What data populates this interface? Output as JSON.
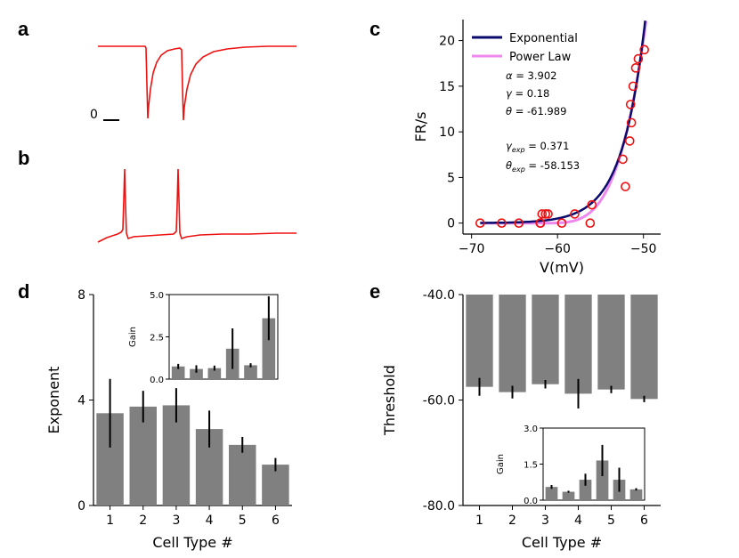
{
  "colors": {
    "trace": "#ee1111",
    "bar": "#808080",
    "err": "#000000",
    "exp_line": "#0b0b6e",
    "pow_line": "#ee88ee",
    "marker": "#ee1111"
  },
  "panels": {
    "a": {
      "label": "a",
      "scale_label": "0",
      "description": "voltage-clamp current trace with two inward transients"
    },
    "b": {
      "label": "b",
      "description": "current-clamp voltage trace with two spikes"
    },
    "c": {
      "label": "c"
    },
    "d": {
      "label": "d"
    },
    "e": {
      "label": "e"
    }
  },
  "chart_data": [
    {
      "id": "c",
      "type": "scatter",
      "xlabel": "V(mV)",
      "ylabel": "FR/s",
      "xlim": [
        -71,
        -48
      ],
      "ylim": [
        -1.2,
        22.3
      ],
      "xticks": [
        -70,
        -60,
        -50
      ],
      "xtick_labels": [
        "−70",
        "−60",
        "−50"
      ],
      "yticks": [
        0,
        5,
        10,
        15,
        20
      ],
      "ytick_labels": [
        "0",
        "5",
        "10",
        "15",
        "20"
      ],
      "legend": [
        "Exponential",
        "Power Law"
      ],
      "legend_position": "top-left",
      "points": {
        "x": [
          -69,
          -66.5,
          -64.5,
          -62,
          -61.8,
          -61.4,
          -62.0,
          -61.1,
          -59.5,
          -58.0,
          -56.2,
          -56.0,
          -52.4,
          -52.1,
          -51.6,
          -51.5,
          -51.4,
          -51.2,
          -50.9,
          -50.6,
          -49.9
        ],
        "y": [
          0,
          0,
          0,
          0,
          1,
          1,
          0,
          1,
          0,
          1,
          0,
          2,
          7,
          4,
          9,
          13,
          11,
          15,
          17,
          18,
          19
        ]
      },
      "series": [
        {
          "name": "Exponential",
          "model": "exponential",
          "gamma": 0.371,
          "theta": -58.153
        },
        {
          "name": "Power Law",
          "model": "power",
          "alpha": 3.902,
          "gamma": 0.18,
          "theta": -61.989
        }
      ],
      "params": {
        "alpha_sym": "α",
        "alpha": "= 3.902",
        "gamma_sym": "γ",
        "gamma": "= 0.18",
        "theta_sym": "θ",
        "theta": "= -61.989",
        "gamma_exp_sym": "γ",
        "exp_sub": "exp",
        "gamma_exp": "= 0.371",
        "theta_exp_sym": "θ",
        "theta_exp": "= -58.153"
      }
    },
    {
      "id": "d",
      "type": "bar",
      "xlabel": "Cell Type #",
      "ylabel": "Exponent",
      "categories": [
        "1",
        "2",
        "3",
        "4",
        "5",
        "6"
      ],
      "values": [
        3.5,
        3.75,
        3.8,
        2.9,
        2.3,
        1.55
      ],
      "errors": [
        1.3,
        0.6,
        0.65,
        0.7,
        0.3,
        0.25
      ],
      "ylim": [
        0,
        8
      ],
      "yticks": [
        0,
        4,
        8
      ],
      "ytick_labels": [
        "0",
        "4",
        "8"
      ],
      "inset": {
        "ylabel": "Gain",
        "values": [
          0.75,
          0.6,
          0.65,
          1.8,
          0.82,
          3.6
        ],
        "errors": [
          0.15,
          0.22,
          0.15,
          1.2,
          0.12,
          1.3
        ],
        "ylim": [
          0,
          5
        ],
        "yticks": [
          0,
          2.5,
          5
        ],
        "ytick_labels": [
          "0.0",
          "2.5",
          "5.0"
        ]
      }
    },
    {
      "id": "e",
      "type": "bar",
      "xlabel": "Cell Type #",
      "ylabel": "Threshold",
      "categories": [
        "1",
        "2",
        "3",
        "4",
        "5",
        "6"
      ],
      "values": [
        -57.5,
        -58.5,
        -57.0,
        -58.8,
        -58.0,
        -59.8
      ],
      "errors": [
        1.7,
        1.2,
        0.8,
        2.8,
        0.7,
        0.6
      ],
      "ylim": [
        -80,
        -40
      ],
      "yticks": [
        -40,
        -60,
        -80
      ],
      "ytick_labels": [
        "-40.0",
        "-60.0",
        "-80.0"
      ],
      "inset": {
        "ylabel": "Gain",
        "values": [
          0.55,
          0.35,
          0.85,
          1.65,
          0.85,
          0.45
        ],
        "errors": [
          0.08,
          0.04,
          0.25,
          0.65,
          0.5,
          0.05
        ],
        "ylim": [
          0,
          3
        ],
        "yticks": [
          0,
          1.5,
          3
        ],
        "ytick_labels": [
          "0.0",
          "1.5",
          "3.0"
        ]
      }
    }
  ]
}
